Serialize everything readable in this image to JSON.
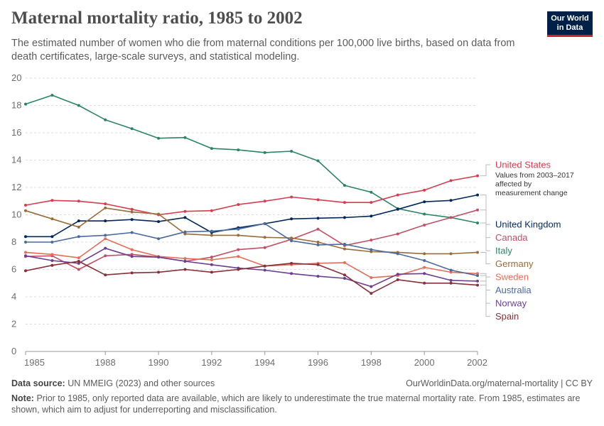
{
  "header": {
    "title": "Maternal mortality ratio, 1985 to 2002",
    "subtitle": "The estimated number of women who die from maternal conditions per 100,000 live births, based on data from death certificates, large-scale surveys, and statistical modeling."
  },
  "logo": {
    "line1": "Our World",
    "line2": "in Data"
  },
  "footer": {
    "source_label": "Data source:",
    "source_text": "UN MMEIG (2023) and other sources",
    "url": "OurWorldinData.org/maternal-mortality | CC BY",
    "note_label": "Note:",
    "note_text": "Prior to 1985, only reported data are available, which are likely to underestimate the true maternal mortality rate. From 1985, estimates are shown, which aim to adjust for underreporting and misclassification."
  },
  "chart_data": {
    "type": "line",
    "title": "Maternal mortality ratio, 1985 to 2002",
    "xlabel": "",
    "ylabel": "",
    "x": [
      1985,
      1986,
      1987,
      1988,
      1989,
      1990,
      1991,
      1992,
      1993,
      1994,
      1995,
      1996,
      1997,
      1998,
      1999,
      2000,
      2001,
      2002
    ],
    "xlim": [
      1985,
      2002
    ],
    "ylim": [
      0,
      20
    ],
    "x_ticks": [
      1985,
      1988,
      1990,
      1992,
      1994,
      1996,
      1998,
      2000,
      2002
    ],
    "y_ticks": [
      0,
      2,
      4,
      6,
      8,
      10,
      12,
      14,
      16,
      18,
      20
    ],
    "grid": true,
    "legend": "right",
    "annotation": "Values from 2003–2017 affected by measurement change",
    "series": [
      {
        "name": "Italy",
        "color": "#2c8465",
        "values": [
          18.1,
          18.75,
          18.0,
          16.95,
          16.3,
          15.6,
          15.65,
          14.85,
          14.75,
          14.55,
          14.65,
          13.95,
          12.15,
          11.65,
          10.45,
          10.05,
          9.8,
          9.4
        ]
      },
      {
        "name": "United States",
        "color": "#d73c50",
        "values": [
          10.7,
          11.05,
          11.0,
          10.8,
          10.4,
          10.0,
          10.25,
          10.3,
          10.75,
          11.0,
          11.3,
          11.1,
          10.9,
          10.9,
          11.45,
          11.8,
          12.5,
          12.85
        ]
      },
      {
        "name": "United Kingdom",
        "color": "#00295b",
        "values": [
          8.4,
          8.4,
          9.55,
          9.55,
          9.65,
          9.5,
          9.8,
          8.7,
          9.05,
          9.35,
          9.7,
          9.75,
          9.8,
          9.9,
          10.4,
          10.95,
          11.05,
          11.45
        ]
      },
      {
        "name": "Canada",
        "color": "#c15065",
        "values": [
          6.95,
          7.0,
          6.0,
          7.0,
          7.1,
          6.9,
          6.6,
          6.9,
          7.45,
          7.6,
          8.2,
          8.95,
          7.75,
          8.15,
          8.6,
          9.25,
          9.8,
          10.35
        ]
      },
      {
        "name": "Germany",
        "color": "#996d39",
        "values": [
          10.3,
          9.7,
          9.1,
          10.5,
          10.2,
          10.05,
          8.6,
          8.5,
          8.5,
          8.35,
          8.3,
          8.0,
          7.5,
          7.3,
          7.25,
          7.15,
          7.15,
          7.25
        ]
      },
      {
        "name": "Sweden",
        "color": "#e56e5a",
        "values": [
          7.25,
          7.1,
          6.85,
          8.25,
          7.45,
          6.95,
          6.8,
          6.7,
          6.95,
          6.25,
          6.35,
          6.45,
          6.5,
          5.4,
          5.55,
          6.15,
          5.8,
          5.7
        ]
      },
      {
        "name": "Australia",
        "color": "#4c6a9c",
        "values": [
          8.0,
          8.0,
          8.4,
          8.5,
          8.7,
          8.25,
          8.75,
          8.8,
          8.95,
          9.35,
          8.1,
          7.8,
          7.85,
          7.45,
          7.15,
          6.65,
          5.95,
          5.55
        ]
      },
      {
        "name": "Norway",
        "color": "#6d3e91",
        "values": [
          7.0,
          6.65,
          6.45,
          7.55,
          6.95,
          6.9,
          6.6,
          6.35,
          6.1,
          5.95,
          5.7,
          5.5,
          5.35,
          4.75,
          5.65,
          5.7,
          5.2,
          5.15
        ]
      },
      {
        "name": "Spain",
        "color": "#883039",
        "values": [
          5.9,
          6.3,
          6.6,
          5.6,
          5.75,
          5.8,
          6.0,
          5.8,
          6.0,
          6.25,
          6.45,
          6.35,
          5.6,
          4.25,
          5.25,
          5.0,
          5.0,
          4.85
        ]
      }
    ]
  }
}
